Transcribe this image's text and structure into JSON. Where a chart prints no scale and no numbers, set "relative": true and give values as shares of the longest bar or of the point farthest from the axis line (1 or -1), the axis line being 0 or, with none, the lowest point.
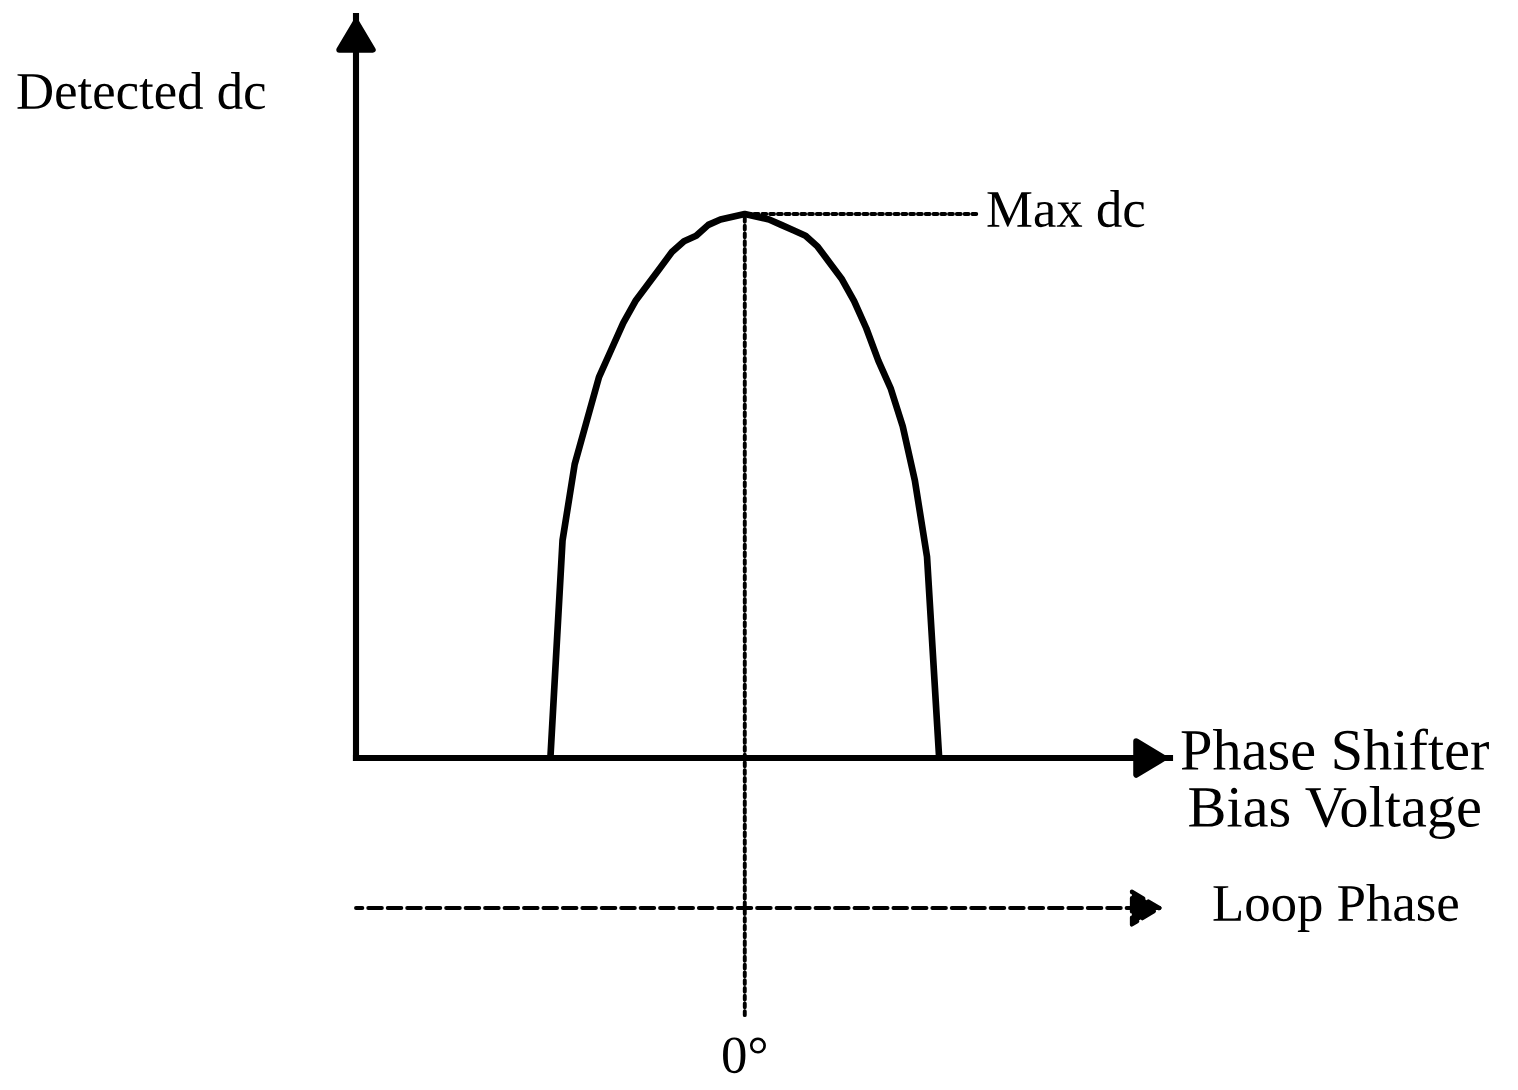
{
  "chart_data": {
    "type": "line",
    "relative": true,
    "ylabel": "Detected dc",
    "xlabel": "Phase Shifter\nBias Voltage",
    "tick_labels": false,
    "categories": [
      null,
      null,
      null,
      null,
      null,
      null,
      null,
      null,
      null,
      null,
      null,
      null,
      null,
      null,
      null,
      null,
      null,
      null,
      null,
      null,
      null,
      null,
      null,
      null,
      null,
      null,
      null,
      null,
      null,
      null,
      null,
      null,
      null,
      null,
      null,
      null,
      null,
      null,
      null,
      null,
      null,
      null,
      null,
      null,
      null,
      null,
      null,
      null,
      null,
      null,
      null,
      null,
      null,
      null,
      null,
      null,
      null,
      null,
      null,
      null,
      null,
      null,
      null,
      null,
      null,
      null,
      null,
      null
    ],
    "series": [
      {
        "color": "#000000",
        "values": [
          null,
          null,
          null,
          null,
          null,
          null,
          null,
          null,
          null,
          null,
          null,
          null,
          null,
          null,
          null,
          null,
          0,
          0.4,
          0.54,
          0.62,
          0.7,
          0.75,
          0.8,
          0.84,
          0.87,
          0.9,
          0.93,
          0.95,
          0.96,
          0.98,
          0.99,
          0.995,
          1,
          0.995,
          0.99,
          0.98,
          0.97,
          0.96,
          0.94,
          0.91,
          0.88,
          0.84,
          0.79,
          0.73,
          0.68,
          0.61,
          0.51,
          0.37,
          0,
          null,
          null,
          null,
          null,
          null,
          null,
          null,
          null,
          null,
          null,
          null,
          null,
          null,
          null,
          null,
          null,
          null,
          null,
          null
        ]
      }
    ],
    "annotations": [
      "Max dc",
      "0°",
      "Loop Phase"
    ]
  }
}
